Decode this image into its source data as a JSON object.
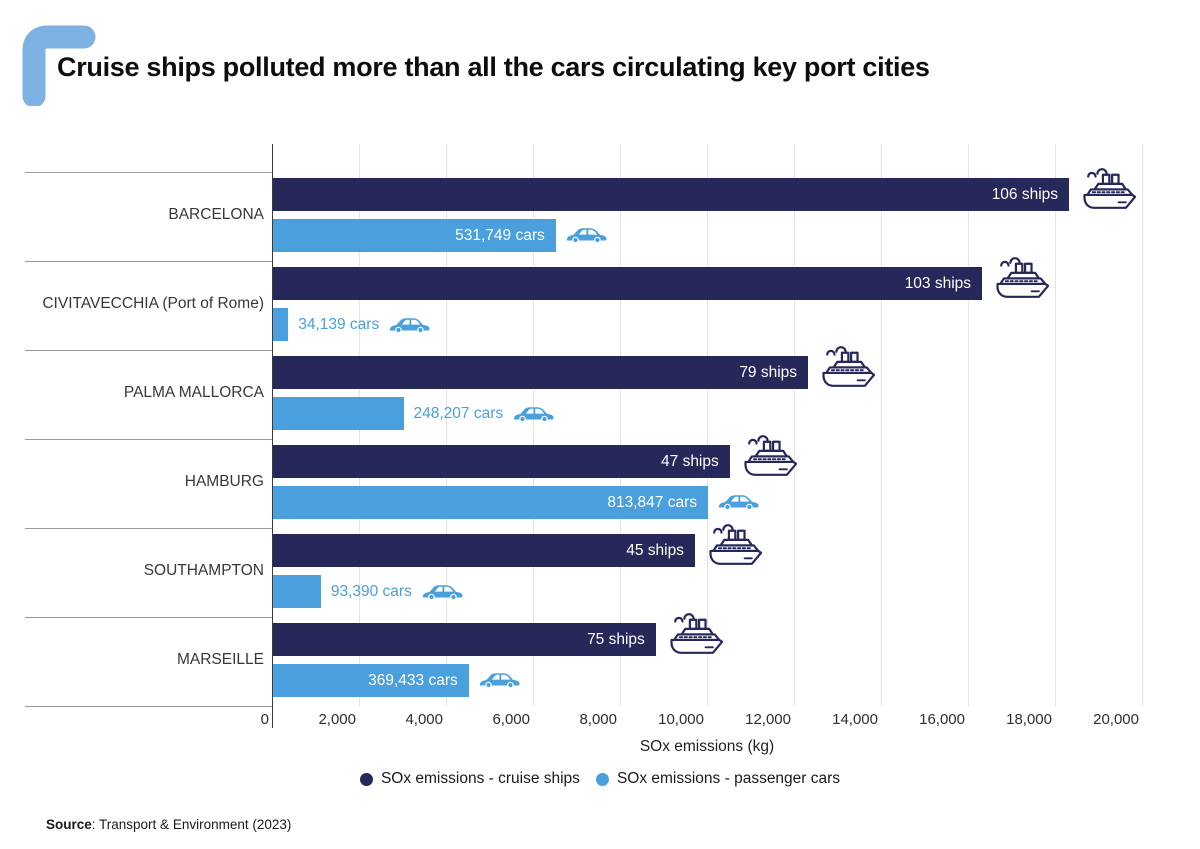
{
  "title": "Cruise ships polluted more than all the cars circulating key port cities",
  "colors": {
    "ships": "#26285a",
    "cars": "#49a0dc",
    "brand_corner": "#7db1e2",
    "gridline": "#e4e4e4",
    "separator": "#9b9b9b"
  },
  "axis": {
    "label": "SOx emissions (kg)",
    "ticks": [
      "0",
      "2,000",
      "4,000",
      "6,000",
      "8,000",
      "10,000",
      "12,000",
      "14,000",
      "16,000",
      "18,000",
      "20,000"
    ],
    "min": 0,
    "max": 20000
  },
  "legend": {
    "items": [
      {
        "label": "SOx emissions - cruise ships",
        "color": "#26285a"
      },
      {
        "label": "SOx emissions - passenger cars",
        "color": "#49a0dc"
      }
    ]
  },
  "source": {
    "prefix": "Source",
    "text": ": Transport & Environment (2023)"
  },
  "icons": {
    "ships": "cruise-ship-icon",
    "cars": "car-icon"
  },
  "chart_data": {
    "type": "bar",
    "orientation": "horizontal",
    "title": "Cruise ships polluted more than all the cars circulating key port cities",
    "xlabel": "SOx emissions (kg)",
    "xlim": [
      0,
      20000
    ],
    "grid": true,
    "legend_position": "bottom",
    "categories": [
      "BARCELONA",
      "CIVITAVECCHIA (Port of Rome)",
      "PALMA MALLORCA",
      "HAMBURG",
      "SOUTHAMPTON",
      "MARSEILLE"
    ],
    "series": [
      {
        "name": "SOx emissions - cruise ships",
        "color": "#26285a",
        "values": [
          18300,
          16300,
          12300,
          10500,
          9700,
          8800
        ],
        "counts": [
          106,
          103,
          79,
          47,
          45,
          75
        ],
        "bar_labels": [
          "106 ships",
          "103 ships",
          "79 ships",
          "47 ships",
          "45 ships",
          "75 ships"
        ],
        "label_placement": [
          "inside",
          "inside",
          "inside",
          "inside",
          "inside",
          "inside"
        ]
      },
      {
        "name": "SOx emissions - passenger cars",
        "color": "#49a0dc",
        "values": [
          6500,
          350,
          3000,
          10000,
          1100,
          4500
        ],
        "counts": [
          531749,
          34139,
          248207,
          813847,
          93390,
          369433
        ],
        "bar_labels": [
          "531,749 cars",
          "34,139 cars",
          "248,207 cars",
          "813,847 cars",
          "93,390 cars",
          "369,433 cars"
        ],
        "label_placement": [
          "inside",
          "outside",
          "outside",
          "inside",
          "outside",
          "inside"
        ]
      }
    ]
  }
}
